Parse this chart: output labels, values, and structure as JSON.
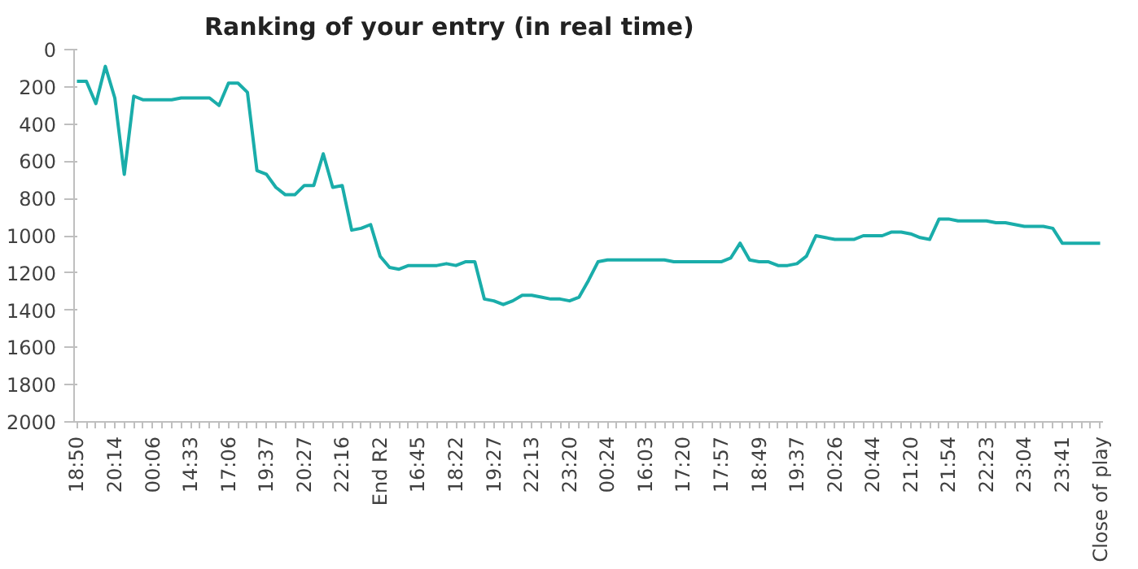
{
  "chart_data": {
    "type": "line",
    "title": "Ranking of your entry (in real time)",
    "categories": [
      "18:50",
      null,
      null,
      null,
      "20:14",
      null,
      null,
      null,
      "00:06",
      null,
      null,
      null,
      "14:33",
      null,
      null,
      null,
      "17:06",
      null,
      null,
      null,
      "19:37",
      null,
      null,
      null,
      "20:27",
      null,
      null,
      null,
      "22:16",
      null,
      null,
      null,
      "End R2",
      null,
      null,
      null,
      "16:45",
      null,
      null,
      null,
      "18:22",
      null,
      null,
      null,
      "19:27",
      null,
      null,
      null,
      "22:13",
      null,
      null,
      null,
      "23:20",
      null,
      null,
      null,
      "00:24",
      null,
      null,
      null,
      "16:03",
      null,
      null,
      null,
      "17:20",
      null,
      null,
      null,
      "17:57",
      null,
      null,
      null,
      "18:49",
      null,
      null,
      null,
      "19:37",
      null,
      null,
      null,
      "20:26",
      null,
      null,
      null,
      "20:44",
      null,
      null,
      null,
      "21:20",
      null,
      null,
      null,
      "21:54",
      null,
      null,
      null,
      "22:23",
      null,
      null,
      null,
      "23:04",
      null,
      null,
      null,
      "23:41",
      null,
      null,
      null,
      "Close of play"
    ],
    "series": [
      {
        "color": "#1aadaa",
        "values": [
          170,
          170,
          290,
          90,
          260,
          670,
          250,
          270,
          270,
          270,
          270,
          260,
          260,
          260,
          260,
          300,
          180,
          180,
          230,
          650,
          670,
          740,
          780,
          780,
          730,
          730,
          560,
          740,
          730,
          970,
          960,
          940,
          1110,
          1170,
          1180,
          1160,
          1160,
          1160,
          1160,
          1150,
          1160,
          1140,
          1140,
          1340,
          1350,
          1370,
          1350,
          1320,
          1320,
          1330,
          1340,
          1340,
          1350,
          1330,
          1240,
          1140,
          1130,
          1130,
          1130,
          1130,
          1130,
          1130,
          1130,
          1140,
          1140,
          1140,
          1140,
          1140,
          1140,
          1120,
          1040,
          1130,
          1140,
          1140,
          1160,
          1160,
          1150,
          1110,
          1000,
          1010,
          1020,
          1020,
          1020,
          1000,
          1000,
          1000,
          980,
          980,
          990,
          1010,
          1020,
          910,
          910,
          920,
          920,
          920,
          920,
          930,
          930,
          940,
          950,
          950,
          950,
          960,
          1040,
          1040,
          1040,
          1040,
          1040
        ]
      }
    ],
    "ylim": [
      2000,
      0
    ],
    "yticks": [
      0,
      200,
      400,
      600,
      800,
      1000,
      1200,
      1400,
      1600,
      1800,
      2000
    ],
    "grid": false,
    "marker": "none",
    "line_style": "solid"
  }
}
